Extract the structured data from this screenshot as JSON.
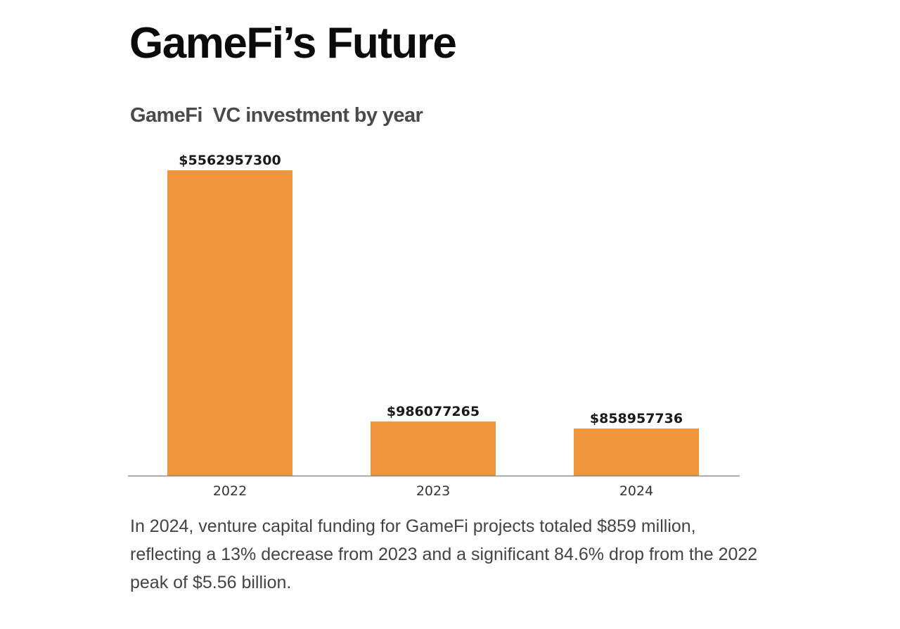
{
  "page": {
    "title": "GameFi’s Future",
    "caption": "In 2024, venture capital funding for GameFi projects totaled $859 million, reflecting a 13% decrease from 2023 and a significant 84.6% drop from the 2022 peak of $5.56 billion."
  },
  "chart_data": {
    "type": "bar",
    "title": "GameFi  VC investment by year",
    "categories": [
      "2022",
      "2023",
      "2024"
    ],
    "values": [
      5562957300,
      986077265,
      858957736
    ],
    "data_labels": [
      "$5562957300",
      "$986077265",
      "$858957736"
    ],
    "xlabel": "",
    "ylabel": "",
    "ylim": [
      0,
      5562957300
    ],
    "grid": false,
    "legend": "none",
    "colors": {
      "bar": "#ef953c",
      "axis": "#8a8a8a"
    }
  }
}
